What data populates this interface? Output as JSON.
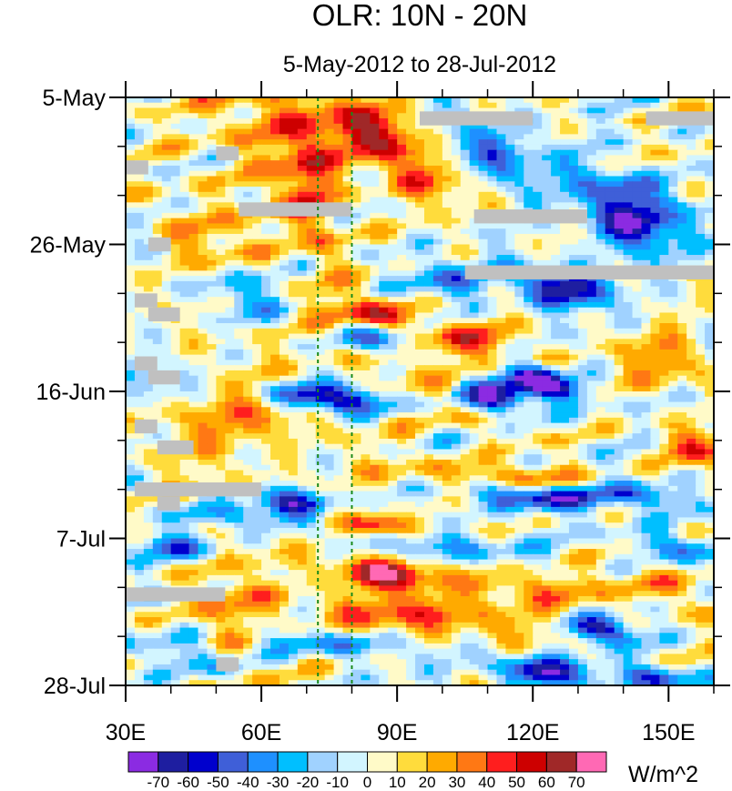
{
  "chart_data": {
    "type": "heatmap",
    "title": "OLR: 10N - 20N",
    "subtitle": "5-May-2012 to 28-Jul-2012",
    "xlabel": "",
    "ylabel": "",
    "x_ticks": [
      {
        "value": 30,
        "label": "30E"
      },
      {
        "value": 60,
        "label": "60E"
      },
      {
        "value": 90,
        "label": "90E"
      },
      {
        "value": 120,
        "label": "120E"
      },
      {
        "value": 150,
        "label": "150E"
      }
    ],
    "xlim": [
      30,
      160
    ],
    "y_ticks": [
      {
        "day": 0,
        "label": "5-May"
      },
      {
        "day": 21,
        "label": "26-May"
      },
      {
        "day": 42,
        "label": "16-Jun"
      },
      {
        "day": 63,
        "label": "7-Jul"
      },
      {
        "day": 84,
        "label": "28-Jul"
      }
    ],
    "y_minor_step_days": 7,
    "ylim_days": [
      0,
      84
    ],
    "y_reversed": true,
    "reference_lines_lon": [
      72.5,
      80
    ],
    "reference_line_color": "#1a8a1a",
    "missing_color": "#c0c0c0",
    "colorbar": {
      "unit": "W/m^2",
      "levels": [
        -70,
        -60,
        -50,
        -40,
        -30,
        -20,
        -10,
        0,
        10,
        20,
        30,
        40,
        50,
        60,
        70
      ],
      "colors": [
        "#8b2be2",
        "#1e1ea0",
        "#0000cd",
        "#3f5fd8",
        "#1e90ff",
        "#00bfff",
        "#a0d2ff",
        "#d2f5ff",
        "#fffac8",
        "#ffdc3c",
        "#ffaa00",
        "#ff7814",
        "#ff1e1e",
        "#cd0000",
        "#a02828",
        "#ff69b4"
      ]
    },
    "anomaly_features": [
      {
        "type": "band",
        "lon0": 30,
        "day0": 0,
        "lon1": 160,
        "day1": 84,
        "amp": 8
      },
      {
        "type": "blob",
        "lon": 90,
        "day": 7,
        "rlon": 12,
        "rday": 5,
        "amp": 50
      },
      {
        "type": "blob",
        "lon": 80,
        "day": 3,
        "rlon": 10,
        "rday": 4,
        "amp": 25
      },
      {
        "type": "blob",
        "lon": 72,
        "day": 16,
        "rlon": 6,
        "rday": 10,
        "amp": 35
      },
      {
        "type": "blob",
        "lon": 65,
        "day": 5,
        "rlon": 10,
        "rday": 8,
        "amp": 25
      },
      {
        "type": "blob",
        "lon": 100,
        "day": 13,
        "rlon": 12,
        "rday": 3,
        "amp": 20
      },
      {
        "type": "blob",
        "lon": 85,
        "day": 31,
        "rlon": 10,
        "rday": 2.5,
        "amp": 45
      },
      {
        "type": "blob",
        "lon": 105,
        "day": 35,
        "rlon": 14,
        "rday": 3,
        "amp": 35
      },
      {
        "type": "blob",
        "lon": 90,
        "day": 38,
        "rlon": 10,
        "rday": 3,
        "amp": 30
      },
      {
        "type": "blob",
        "lon": 85,
        "day": 61,
        "rlon": 8,
        "rday": 1.8,
        "amp": 65
      },
      {
        "type": "blob",
        "lon": 86,
        "day": 68,
        "rlon": 10,
        "rday": 2.2,
        "amp": 70
      },
      {
        "type": "blob",
        "lon": 60,
        "day": 46,
        "rlon": 20,
        "rday": 3,
        "amp": 20
      },
      {
        "type": "blob",
        "lon": 110,
        "day": 54,
        "rlon": 22,
        "rday": 2,
        "amp": 35
      },
      {
        "type": "blob",
        "lon": 95,
        "day": 74,
        "rlon": 25,
        "rday": 3,
        "amp": 40
      },
      {
        "type": "blob",
        "lon": 118,
        "day": 70,
        "rlon": 18,
        "rday": 2.5,
        "amp": 30
      },
      {
        "type": "blob",
        "lon": 150,
        "day": 38,
        "rlon": 10,
        "rday": 4,
        "amp": 30
      },
      {
        "type": "blob",
        "lon": 155,
        "day": 50,
        "rlon": 8,
        "rday": 3,
        "amp": 35
      },
      {
        "type": "blob",
        "lon": 45,
        "day": 20,
        "rlon": 8,
        "rday": 5,
        "amp": 20
      },
      {
        "type": "blob",
        "lon": 150,
        "day": 70,
        "rlon": 10,
        "rday": 3,
        "amp": 25
      },
      {
        "type": "blob",
        "lon": 110,
        "day": 46,
        "rlon": 10,
        "rday": 2,
        "amp": 25
      },
      {
        "type": "blob",
        "lon": 53,
        "day": 75,
        "rlon": 8,
        "rday": 8,
        "amp": 12
      },
      {
        "type": "blob",
        "lon": 40,
        "day": 48,
        "rlon": 8,
        "rday": 5,
        "amp": 10
      },
      {
        "type": "blob",
        "lon": 110,
        "day": 8,
        "rlon": 12,
        "rday": 5,
        "amp": -45
      },
      {
        "type": "blob",
        "lon": 142,
        "day": 18,
        "rlon": 10,
        "rday": 4,
        "amp": -65
      },
      {
        "type": "blob",
        "lon": 126,
        "day": 27,
        "rlon": 10,
        "rday": 3,
        "amp": -70
      },
      {
        "type": "blob",
        "lon": 87,
        "day": 35,
        "rlon": 8,
        "rday": 2.5,
        "amp": -55
      },
      {
        "type": "blob",
        "lon": 120,
        "day": 40,
        "rlon": 6,
        "rday": 2,
        "amp": -65
      },
      {
        "type": "blob",
        "lon": 112,
        "day": 43,
        "rlon": 8,
        "rday": 3,
        "amp": -60
      },
      {
        "type": "blob",
        "lon": 75,
        "day": 43,
        "rlon": 12,
        "rday": 2,
        "amp": -70
      },
      {
        "type": "blob",
        "lon": 127,
        "day": 42,
        "rlon": 6,
        "rday": 2,
        "amp": -50
      },
      {
        "type": "blob",
        "lon": 68,
        "day": 58,
        "rlon": 9,
        "rday": 2,
        "amp": -60
      },
      {
        "type": "blob",
        "lon": 55,
        "day": 60,
        "rlon": 14,
        "rday": 2,
        "amp": -35
      },
      {
        "type": "blob",
        "lon": 120,
        "day": 57,
        "rlon": 14,
        "rday": 2,
        "amp": -60
      },
      {
        "type": "blob",
        "lon": 145,
        "day": 57,
        "rlon": 10,
        "rday": 2,
        "amp": -45
      },
      {
        "type": "blob",
        "lon": 135,
        "day": 76,
        "rlon": 8,
        "rday": 2,
        "amp": -65
      },
      {
        "type": "blob",
        "lon": 122,
        "day": 82,
        "rlon": 10,
        "rday": 2,
        "amp": -70
      },
      {
        "type": "blob",
        "lon": 148,
        "day": 83,
        "rlon": 8,
        "rday": 2,
        "amp": -50
      },
      {
        "type": "blob",
        "lon": 55,
        "day": 28,
        "rlon": 8,
        "rday": 4,
        "amp": -40
      },
      {
        "type": "blob",
        "lon": 140,
        "day": 13,
        "rlon": 10,
        "rday": 3,
        "amp": -40
      },
      {
        "type": "blob",
        "lon": 40,
        "day": 64,
        "rlon": 10,
        "rday": 2,
        "amp": -40
      },
      {
        "type": "blob",
        "lon": 45,
        "day": 80,
        "rlon": 10,
        "rday": 3,
        "amp": -35
      },
      {
        "type": "blob",
        "lon": 100,
        "day": 64,
        "rlon": 14,
        "rday": 2,
        "amp": -35
      },
      {
        "type": "blob",
        "lon": 75,
        "day": 78,
        "rlon": 16,
        "rday": 2,
        "amp": -35
      },
      {
        "type": "blob",
        "lon": 150,
        "day": 64,
        "rlon": 10,
        "rday": 2,
        "amp": -35
      },
      {
        "type": "blob",
        "lon": 100,
        "day": 26,
        "rlon": 10,
        "rday": 3,
        "amp": -30
      },
      {
        "type": "blob",
        "lon": 35,
        "day": 40,
        "rlon": 6,
        "rday": 3,
        "amp": -30
      }
    ],
    "missing_segments": [
      {
        "lon0": 95,
        "lon1": 120,
        "day0": 2,
        "day1": 4
      },
      {
        "lon0": 145,
        "lon1": 160,
        "day0": 2,
        "day1": 4
      },
      {
        "lon0": 30,
        "lon1": 35,
        "day0": 9,
        "day1": 11
      },
      {
        "lon0": 50,
        "lon1": 55,
        "day0": 7,
        "day1": 9
      },
      {
        "lon0": 55,
        "lon1": 80,
        "day0": 15,
        "day1": 17
      },
      {
        "lon0": 107,
        "lon1": 132,
        "day0": 16,
        "day1": 18
      },
      {
        "lon0": 35,
        "lon1": 40,
        "day0": 20,
        "day1": 22
      },
      {
        "lon0": 105,
        "lon1": 160,
        "day0": 24,
        "day1": 26
      },
      {
        "lon0": 32,
        "lon1": 37,
        "day0": 28,
        "day1": 30
      },
      {
        "lon0": 35,
        "lon1": 42,
        "day0": 30,
        "day1": 32
      },
      {
        "lon0": 32,
        "lon1": 37,
        "day0": 37,
        "day1": 39
      },
      {
        "lon0": 35,
        "lon1": 42,
        "day0": 39,
        "day1": 41
      },
      {
        "lon0": 32,
        "lon1": 37,
        "day0": 46,
        "day1": 48
      },
      {
        "lon0": 37,
        "lon1": 45,
        "day0": 49,
        "day1": 51
      },
      {
        "lon0": 32,
        "lon1": 60,
        "day0": 55,
        "day1": 57
      },
      {
        "lon0": 37,
        "lon1": 42,
        "day0": 57,
        "day1": 59
      },
      {
        "lon0": 30,
        "lon1": 52,
        "day0": 70,
        "day1": 72
      },
      {
        "lon0": 50,
        "lon1": 55,
        "day0": 80,
        "day1": 82
      }
    ]
  }
}
